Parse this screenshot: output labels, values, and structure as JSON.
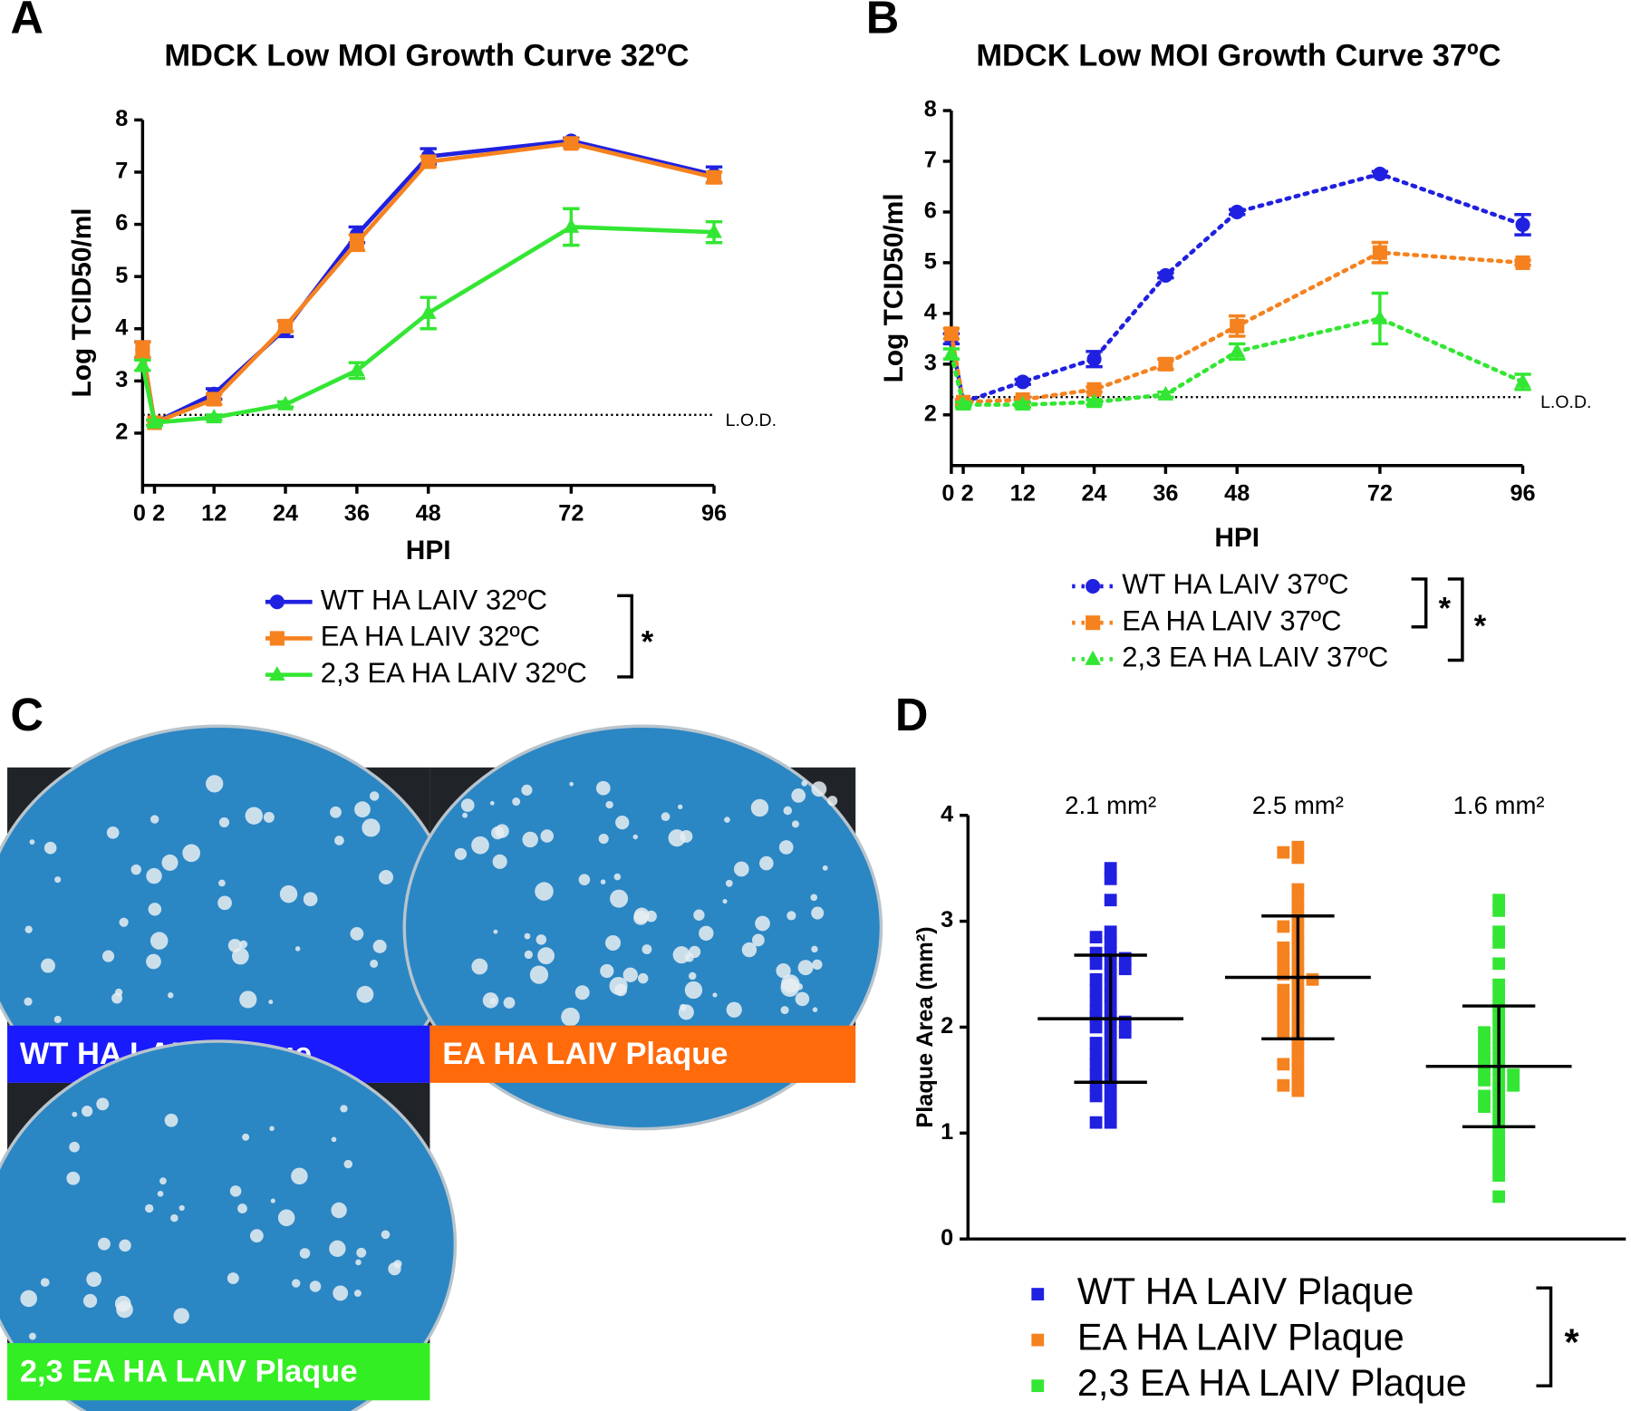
{
  "chart_data": [
    {
      "type": "line",
      "letter": "A",
      "title": "MDCK Low MOI Growth Curve 32ºC",
      "xlabel": "HPI",
      "ylabel": "Log TCID50/ml",
      "x": [
        0,
        2,
        12,
        24,
        36,
        48,
        72,
        96
      ],
      "xlim": [
        0,
        96
      ],
      "xticks": [
        0,
        2,
        12,
        24,
        36,
        48,
        72,
        96
      ],
      "ylim": [
        1,
        8
      ],
      "yticks": [
        2,
        3,
        4,
        5,
        6,
        7,
        8
      ],
      "linestyle": "solid",
      "reference_line": {
        "value": 2.35,
        "label": "L.O.D."
      },
      "significance": [
        "*"
      ],
      "series": [
        {
          "name": "WT HA LAIV 32ºC",
          "color": "#2020e0",
          "marker": "circle",
          "values": [
            3.6,
            2.2,
            2.75,
            4.0,
            5.8,
            7.3,
            7.6,
            6.95
          ],
          "errors": [
            0.15,
            0.05,
            0.1,
            0.15,
            0.15,
            0.15,
            0.05,
            0.15
          ]
        },
        {
          "name": "EA HA LAIV 32ºC",
          "color": "#f5821f",
          "marker": "square",
          "values": [
            3.6,
            2.2,
            2.65,
            4.05,
            5.65,
            7.2,
            7.55,
            6.9
          ],
          "errors": [
            0.15,
            0.05,
            0.1,
            0.1,
            0.15,
            0.1,
            0.08,
            0.1
          ]
        },
        {
          "name": "2,3 EA HA LAIV 32ºC",
          "color": "#33e633",
          "marker": "triangle",
          "values": [
            3.3,
            2.2,
            2.3,
            2.55,
            3.2,
            4.3,
            5.95,
            5.85
          ],
          "errors": [
            0.1,
            0.05,
            0.05,
            0.05,
            0.15,
            0.3,
            0.35,
            0.2
          ]
        }
      ]
    },
    {
      "type": "line",
      "letter": "B",
      "title": "MDCK Low MOI Growth Curve 37ºC",
      "xlabel": "HPI",
      "ylabel": "Log TCID50/ml",
      "x": [
        0,
        2,
        12,
        24,
        36,
        48,
        72,
        96
      ],
      "xlim": [
        0,
        96
      ],
      "xticks": [
        0,
        2,
        12,
        24,
        36,
        48,
        72,
        96
      ],
      "ylim": [
        1,
        8
      ],
      "yticks": [
        2,
        3,
        4,
        5,
        6,
        7,
        8
      ],
      "linestyle": "dotted",
      "reference_line": {
        "value": 2.35,
        "label": "L.O.D."
      },
      "significance": [
        "*",
        "*"
      ],
      "series": [
        {
          "name": "WT HA LAIV 37ºC",
          "color": "#2020e0",
          "marker": "circle",
          "values": [
            3.5,
            2.25,
            2.65,
            3.1,
            4.75,
            6.0,
            6.75,
            5.75
          ],
          "errors": [
            0.1,
            0.05,
            0.05,
            0.15,
            0.05,
            0.05,
            0.05,
            0.2
          ]
        },
        {
          "name": "EA HA LAIV 37ºC",
          "color": "#f5821f",
          "marker": "square",
          "values": [
            3.6,
            2.25,
            2.3,
            2.5,
            3.0,
            3.75,
            5.2,
            5.0
          ],
          "errors": [
            0.1,
            0.05,
            0.05,
            0.05,
            0.1,
            0.2,
            0.2,
            0.05
          ]
        },
        {
          "name": "2,3 EA HA LAIV 37ºC",
          "color": "#33e633",
          "marker": "triangle",
          "values": [
            3.2,
            2.2,
            2.2,
            2.25,
            2.4,
            3.25,
            3.9,
            2.65
          ],
          "errors": [
            0.1,
            0.05,
            0.05,
            0.05,
            0.05,
            0.15,
            0.5,
            0.15
          ]
        }
      ]
    },
    {
      "type": "scatter",
      "letter": "D",
      "ylabel": "Plaque Area (mm²)",
      "ylim": [
        0,
        4
      ],
      "yticks": [
        0,
        1,
        2,
        3,
        4
      ],
      "significance": [
        "*"
      ],
      "annotations": [
        "2.1 mm²",
        "2.5 mm²",
        "1.6 mm²"
      ],
      "series": [
        {
          "name": "WT HA LAIV Plaque",
          "color": "#2020e0",
          "mean": 2.08,
          "sd": 0.6,
          "values": [
            3.5,
            3.4,
            3.2,
            2.9,
            2.85,
            2.8,
            2.7,
            2.7,
            2.65,
            2.6,
            2.6,
            2.55,
            2.5,
            2.45,
            2.4,
            2.35,
            2.3,
            2.25,
            2.2,
            2.15,
            2.1,
            2.1,
            2.05,
            2.0,
            2.0,
            1.95,
            1.9,
            1.85,
            1.8,
            1.75,
            1.7,
            1.65,
            1.6,
            1.55,
            1.5,
            1.45,
            1.4,
            1.35,
            1.3,
            1.2,
            1.1,
            1.1
          ]
        },
        {
          "name": "EA HA LAIV Plaque",
          "color": "#f5821f",
          "mean": 2.47,
          "sd": 0.58,
          "values": [
            3.7,
            3.65,
            3.6,
            3.3,
            3.2,
            3.1,
            3.0,
            2.95,
            2.9,
            2.8,
            2.75,
            2.7,
            2.65,
            2.6,
            2.55,
            2.5,
            2.5,
            2.45,
            2.4,
            2.35,
            2.3,
            2.25,
            2.2,
            2.15,
            2.1,
            2.05,
            2.0,
            1.95,
            1.9,
            1.8,
            1.7,
            1.65,
            1.6,
            1.5,
            1.45,
            1.4
          ]
        },
        {
          "name": "2,3 EA HA LAIV Plaque",
          "color": "#33e633",
          "mean": 1.63,
          "sd": 0.57,
          "values": [
            3.2,
            3.1,
            2.9,
            2.8,
            2.6,
            2.4,
            2.3,
            2.2,
            2.1,
            2.0,
            1.95,
            1.9,
            1.85,
            1.8,
            1.75,
            1.7,
            1.65,
            1.6,
            1.6,
            1.55,
            1.5,
            1.5,
            1.45,
            1.4,
            1.35,
            1.3,
            1.25,
            1.2,
            1.1,
            1.0,
            0.9,
            0.8,
            0.7,
            0.6,
            0.4
          ]
        }
      ]
    }
  ],
  "panel_c": {
    "letter": "C",
    "labels": [
      "WT HA LAIV Plaque",
      "EA HA LAIV Plaque",
      "2,3 EA HA LAIV Plaque"
    ]
  }
}
